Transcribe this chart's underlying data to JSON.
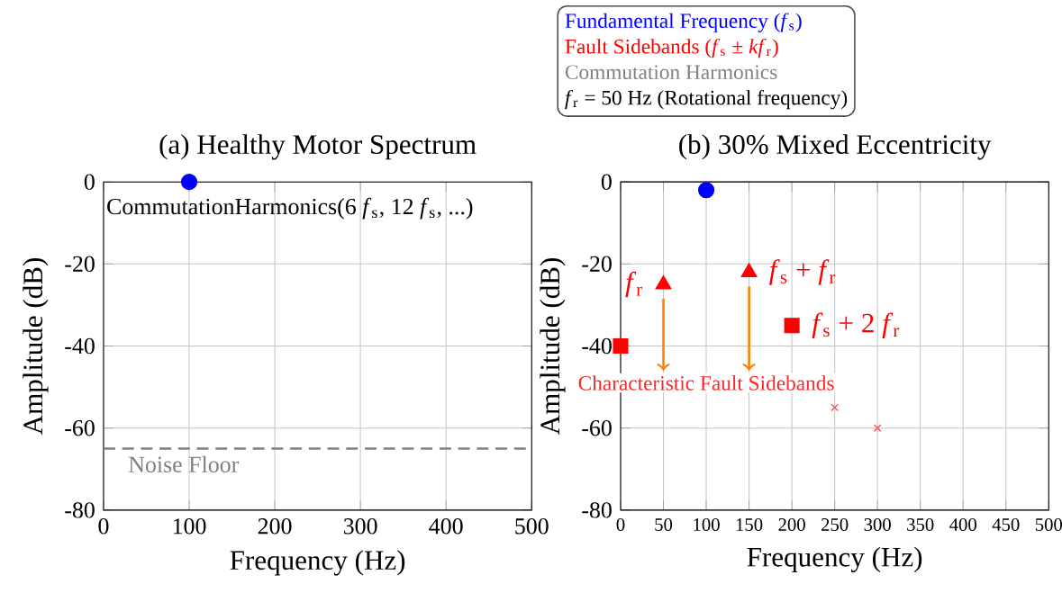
{
  "chart_data": [
    {
      "type": "scatter",
      "title": "(a) Healthy Motor Spectrum",
      "xlabel": "Frequency (Hz)",
      "ylabel": "Amplitude (dB)",
      "xlim": [
        0,
        500
      ],
      "xticks": [
        0,
        100,
        200,
        300,
        400,
        500
      ],
      "ylim": [
        -80,
        0
      ],
      "yticks": [
        -80,
        -60,
        -40,
        -20,
        0
      ],
      "grid": true,
      "series": [
        {
          "color": "#0000ff",
          "marker": "circle",
          "x": [
            100
          ],
          "values": [
            0
          ]
        }
      ],
      "ref_lines": [
        {
          "axis": "y",
          "value": -65,
          "label": "Noise Floor",
          "color": "#808080",
          "line_style": "dashed"
        }
      ],
      "annotations": [
        "CommutationHarmonics(6 *f*$_{s}$, 12 *f*$_{s}$, ...)"
      ]
    },
    {
      "type": "scatter",
      "title": "(b) 30% Mixed Eccentricity",
      "xlabel": "Frequency (Hz)",
      "ylabel": "Amplitude (dB)",
      "xlim": [
        0,
        500
      ],
      "xticks": [
        0,
        50,
        100,
        150,
        200,
        250,
        300,
        350,
        400,
        450,
        500
      ],
      "ylim": [
        -80,
        0
      ],
      "yticks": [
        -80,
        -60,
        -40,
        -20,
        0
      ],
      "grid": true,
      "legend": "top",
      "series": [
        {
          "name": "Fundamental Frequency (*f*$_{s}$)",
          "color": "#0000ff",
          "marker": "circle",
          "x": [
            100
          ],
          "values": [
            -2
          ]
        },
        {
          "name": "Fault Sidebands (*f*$_{s}$ ± *kf*$_{r}$)",
          "color": "#ff0000",
          "marker": "triangle",
          "x": [
            50,
            150
          ],
          "values": [
            -25,
            -22
          ]
        },
        {
          "color": "#ff0000",
          "marker": "square",
          "x": [
            0,
            200
          ],
          "values": [
            -40,
            -35
          ]
        },
        {
          "color": "#ff5a5a",
          "marker": "cross",
          "x": [
            250,
            300
          ],
          "values": [
            -55,
            -60
          ]
        }
      ],
      "annotations": [
        "Commutation Harmonics",
        "*f*$_{r}$ = 50 Hz (Rotational frequency)",
        {
          "text": "*f*$_{r}$",
          "x": 50,
          "y": -25
        },
        {
          "text": "*f*$_{s}$ + *f*$_{r}$",
          "x": 150,
          "y": -22
        },
        {
          "text": "*f*$_{s}$ + 2 *f*$_{r}$",
          "x": 200,
          "y": -35
        },
        "Characteristic Fault Sidebands"
      ]
    }
  ]
}
